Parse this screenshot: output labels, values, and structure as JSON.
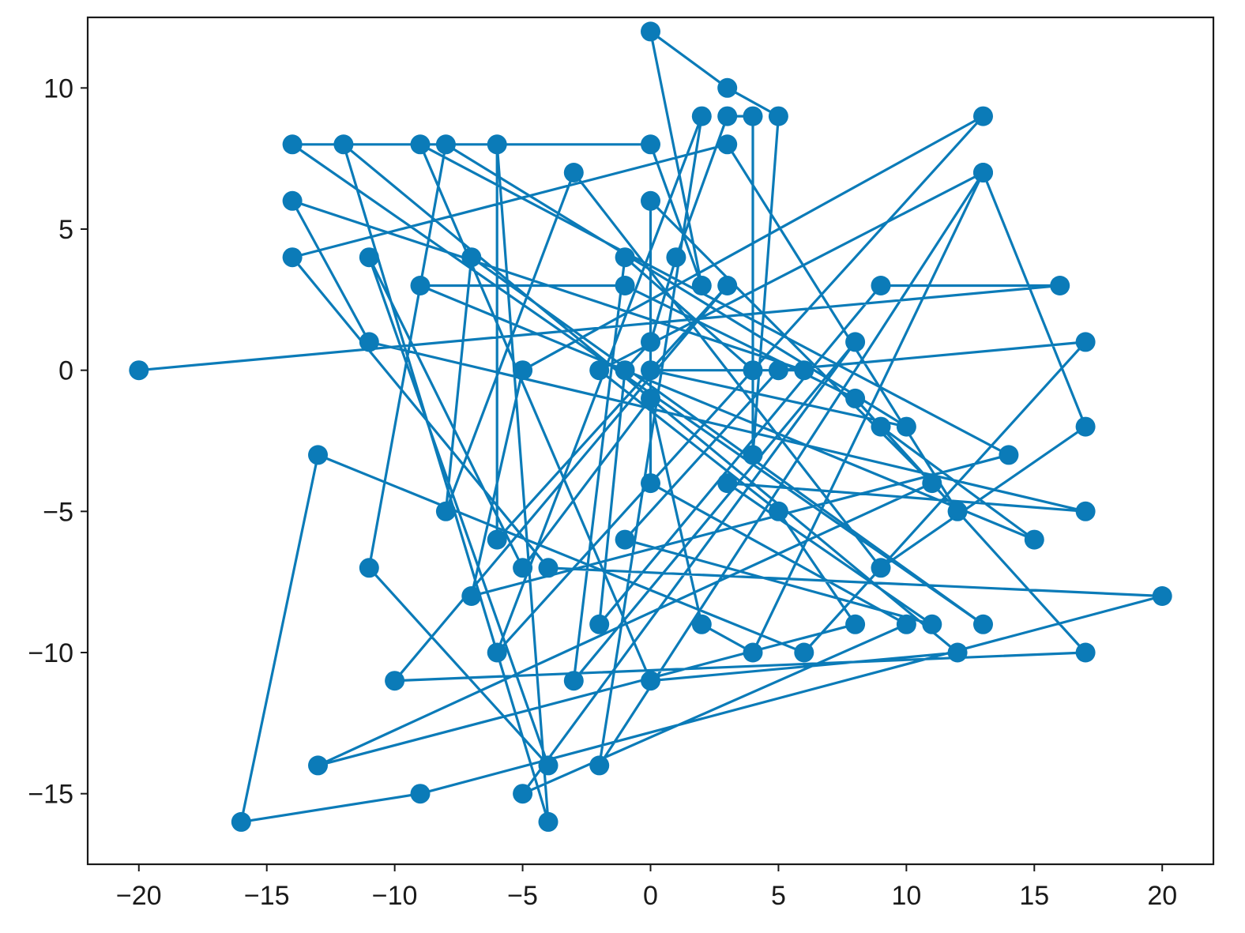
{
  "chart_data": {
    "type": "line",
    "title": "",
    "xlabel": "",
    "ylabel": "",
    "xlim": [
      -22,
      22
    ],
    "ylim": [
      -17.5,
      12.5
    ],
    "grid": false,
    "legend": "none",
    "marker": "circle",
    "color": "#0b7bb8",
    "xticks": [
      -20,
      -15,
      -10,
      -5,
      0,
      5,
      10,
      15,
      20
    ],
    "xtick_labels": [
      "−20",
      "−15",
      "−10",
      "−5",
      "0",
      "5",
      "10",
      "15",
      "20"
    ],
    "yticks": [
      10,
      5,
      0,
      -5,
      -10,
      -15
    ],
    "ytick_labels": [
      "10",
      "5",
      "0",
      "−5",
      "−10",
      "−15"
    ],
    "series": [
      {
        "x": [
          -20,
          16,
          9,
          -2,
          -1,
          0,
          1,
          3,
          4,
          4,
          5,
          3,
          0,
          2,
          0,
          -14,
          13,
          -7,
          -8,
          -3,
          9,
          17,
          13,
          4,
          2,
          0,
          -5,
          -11,
          -4,
          -11,
          -8,
          10,
          0,
          6,
          -14,
          -11,
          17,
          3,
          11,
          -1,
          5,
          17,
          6,
          -13,
          -16,
          -9,
          20,
          -4,
          -14,
          3,
          12,
          9,
          15,
          -9,
          -1,
          8,
          17,
          -10,
          3,
          -6,
          -6,
          -4,
          -12,
          12,
          0,
          -9,
          14,
          -7,
          -5,
          13,
          -6,
          2,
          -2,
          13,
          -2,
          5,
          8,
          -13,
          11,
          0,
          0,
          10,
          -5,
          8,
          -3,
          -1,
          4
        ],
        "y": [
          0,
          3,
          3,
          -9,
          0,
          1,
          4,
          9,
          9,
          -3,
          9,
          10,
          12,
          3,
          8,
          8,
          -9,
          4,
          -5,
          7,
          -7,
          -2,
          7,
          -10,
          -9,
          -1,
          -7,
          4,
          -14,
          -7,
          8,
          -2,
          0,
          0,
          6,
          1,
          -5,
          -4,
          -9,
          -6,
          0,
          1,
          -10,
          -3,
          -16,
          -15,
          -8,
          -7,
          4,
          8,
          -5,
          -2,
          -6,
          3,
          3,
          -1,
          -10,
          -11,
          3,
          -6,
          8,
          -16,
          8,
          -10,
          -11,
          8,
          -3,
          -8,
          0,
          9,
          -10,
          9,
          -14,
          7,
          0,
          -5,
          -9,
          -14,
          -4,
          6,
          -4,
          -9,
          -15,
          1,
          -11,
          4,
          0
        ]
      }
    ]
  }
}
